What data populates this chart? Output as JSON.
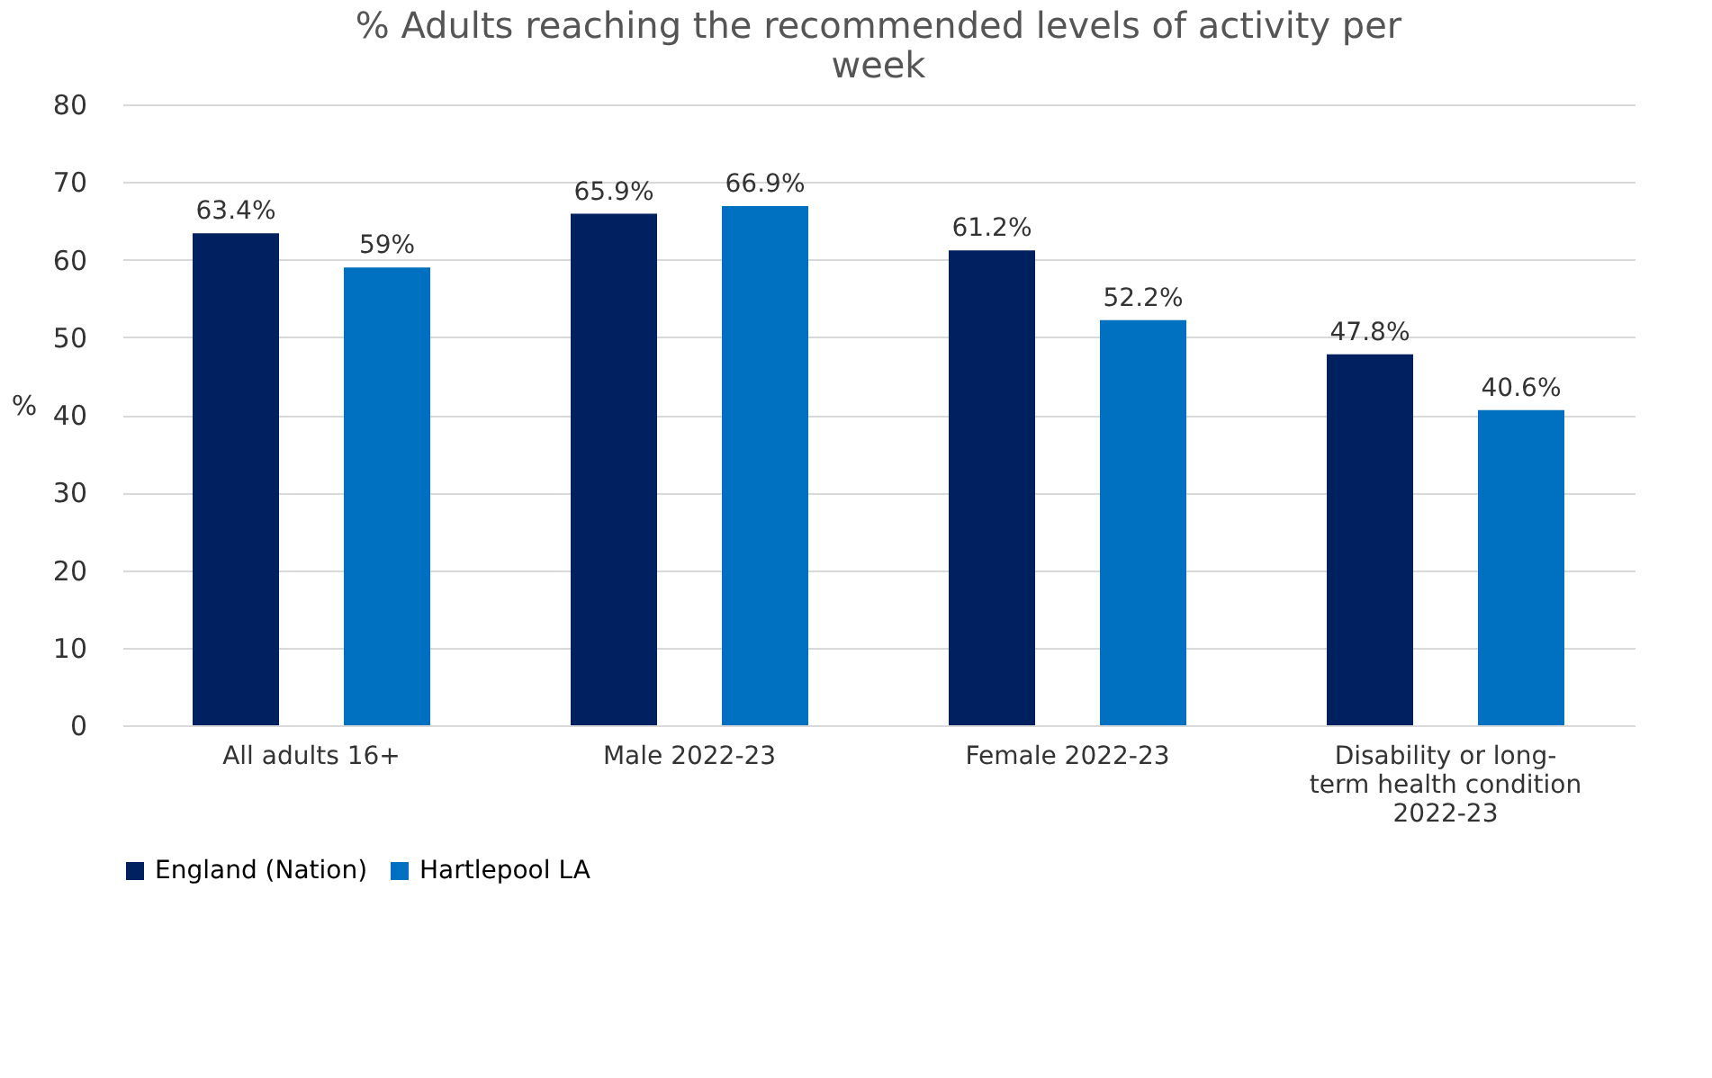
{
  "chart_data": {
    "type": "bar",
    "title": "% Adults reaching the recommended levels of activity per week",
    "ylabel": "%",
    "categories": [
      "All adults 16+",
      "Male 2022-23",
      "Female 2022-23",
      "Disability or long-term health condition 2022-23"
    ],
    "series": [
      {
        "name": "England (Nation)",
        "color": "#002060",
        "values": [
          63.4,
          65.9,
          61.2,
          47.8
        ],
        "value_labels": [
          "63.4%",
          "65.9%",
          "61.2%",
          "47.8%"
        ]
      },
      {
        "name": "Hartlepool LA",
        "color": "#0070c0",
        "values": [
          59,
          66.9,
          52.2,
          40.6
        ],
        "value_labels": [
          "59%",
          "66.9%",
          "52.2%",
          "40.6%"
        ]
      }
    ],
    "ylim": [
      0,
      80
    ],
    "yticks": [
      0,
      10,
      20,
      30,
      40,
      50,
      60,
      70,
      80
    ],
    "grid": "y",
    "legend": "bottom"
  }
}
